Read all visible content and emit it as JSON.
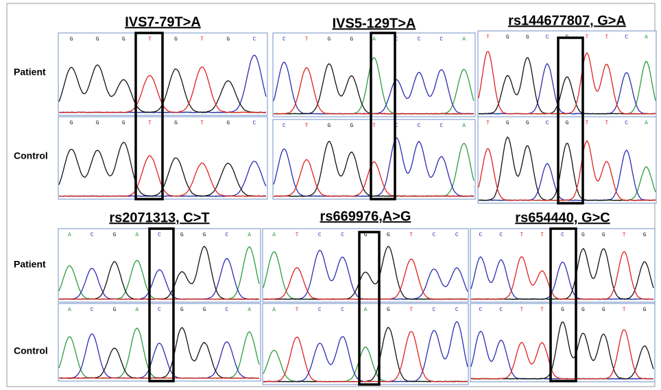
{
  "row_labels": {
    "patient": "Patient",
    "control": "Control"
  },
  "panels": [
    {
      "title": "IVS7-79T>A",
      "patient": [
        "G",
        "G",
        "G",
        "T",
        "G",
        "T",
        "G",
        "C"
      ],
      "control": [
        "G",
        "G",
        "G",
        "T",
        "G",
        "T",
        "G",
        "C"
      ]
    },
    {
      "title": "IVS5-129T>A",
      "patient": [
        "C",
        "T",
        "G",
        "G",
        "A",
        "C",
        "C",
        "C",
        "A"
      ],
      "control": [
        "C",
        "T",
        "G",
        "G",
        "T",
        "C",
        "C",
        "C",
        "A"
      ]
    },
    {
      "title": "rs144677807, G>A",
      "patient": [
        "T",
        "G",
        "G",
        "C",
        "G",
        "T",
        "T",
        "C",
        "A"
      ],
      "control": [
        "T",
        "G",
        "G",
        "C",
        "G",
        "T",
        "T",
        "C",
        "A"
      ]
    },
    {
      "title": "rs2071313, C>T",
      "patient": [
        "A",
        "C",
        "G",
        "A",
        "C",
        "G",
        "G",
        "C",
        "A"
      ],
      "control": [
        "A",
        "C",
        "G",
        "A",
        "C",
        "G",
        "G",
        "C",
        "A"
      ]
    },
    {
      "title": "rs669976,A>G",
      "patient": [
        "A",
        "T",
        "C",
        "C",
        "G",
        "G",
        "T",
        "C",
        "C"
      ],
      "control": [
        "A",
        "T",
        "C",
        "C",
        "A",
        "G",
        "T",
        "C",
        "C"
      ]
    },
    {
      "title": "rs654440, G>C",
      "patient": [
        "C",
        "C",
        "T",
        "T",
        "C",
        "G",
        "G",
        "T",
        "G"
      ],
      "control": [
        "C",
        "C",
        "T",
        "T",
        "G",
        "G",
        "G",
        "T",
        "G"
      ]
    }
  ]
}
